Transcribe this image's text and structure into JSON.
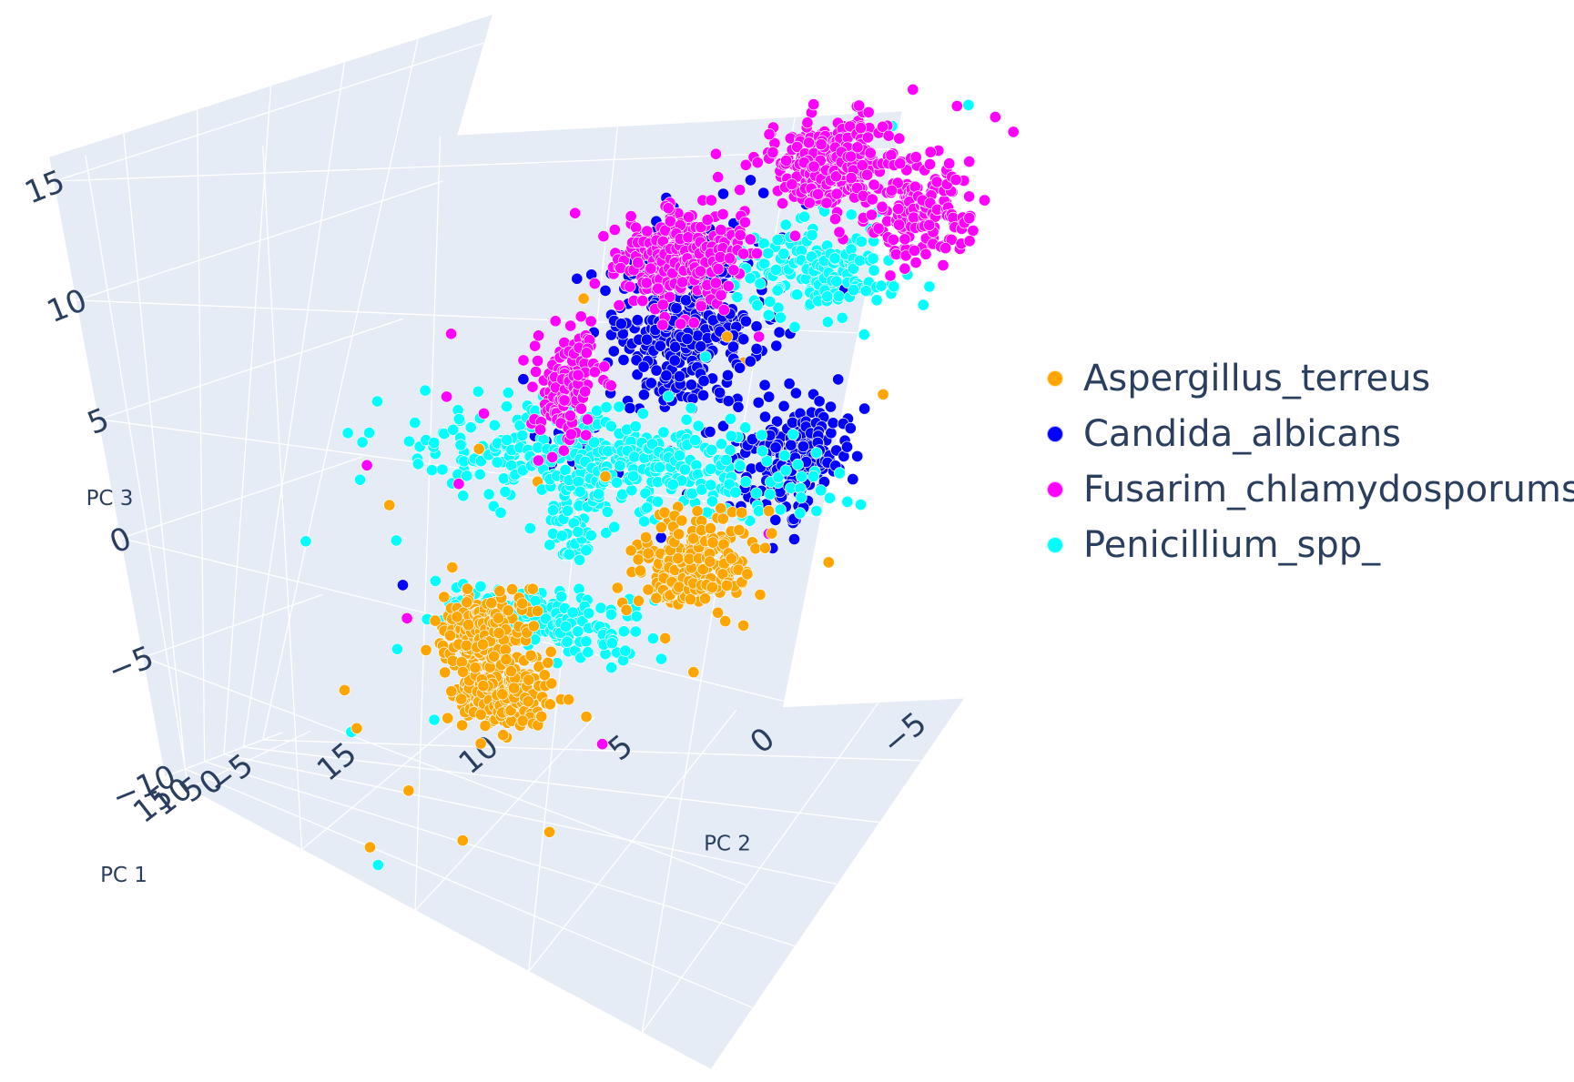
{
  "chart_data": {
    "type": "scatter3d",
    "axes": {
      "x": {
        "label": "PC 1",
        "range": [
          -10,
          20
        ],
        "ticks": [
          "-5",
          "0",
          "5",
          "10",
          "15"
        ]
      },
      "y": {
        "label": "PC 2",
        "range": [
          -8,
          16
        ],
        "ticks": [
          "-5",
          "0",
          "5",
          "10",
          "15"
        ]
      },
      "z": {
        "label": "PC 3",
        "range": [
          -10,
          16
        ],
        "ticks": [
          "-10",
          "-5",
          "0",
          "5",
          "10",
          "15"
        ]
      }
    },
    "grid": true,
    "legend_position": "right",
    "series": [
      {
        "name": "Aspergillus_terreus",
        "color": "#FFA500",
        "clusters": [
          {
            "center": [
              -2,
              1,
              -2
            ],
            "spread": [
              1.2,
              1.0,
              0.8
            ],
            "n": 260
          },
          {
            "center": [
              4,
              6,
              -6
            ],
            "spread": [
              1.2,
              0.8,
              0.6
            ],
            "n": 240
          },
          {
            "center": [
              -1,
              8,
              -5
            ],
            "spread": [
              1.0,
              0.8,
              0.7
            ],
            "n": 200
          }
        ],
        "points": [
          [
            -5,
            2,
            6
          ],
          [
            12,
            -3,
            8
          ],
          [
            2,
            7,
            -12
          ],
          [
            6,
            3,
            -10
          ],
          [
            -6,
            -4,
            4
          ],
          [
            9,
            8,
            -9
          ],
          [
            14,
            2,
            10
          ],
          [
            -3,
            10,
            -3
          ],
          [
            1,
            -5,
            13
          ],
          [
            5,
            11,
            -8
          ],
          [
            8,
            -2,
            -3
          ],
          [
            -7,
            6,
            0
          ],
          [
            3,
            12,
            -7
          ],
          [
            10,
            4,
            3
          ],
          [
            0,
            9,
            2
          ],
          [
            7,
            -6,
            1
          ],
          [
            -4,
            13,
            -1
          ],
          [
            11,
            9,
            -11
          ]
        ]
      },
      {
        "name": "Candida_albicans",
        "color": "#0000FF",
        "clusters": [
          {
            "center": [
              12,
              -1,
              9
            ],
            "spread": [
              1.4,
              1.2,
              1.6
            ],
            "n": 380
          },
          {
            "center": [
              16,
              -6,
              6
            ],
            "spread": [
              0.8,
              0.9,
              0.8
            ],
            "n": 200
          },
          {
            "center": [
              14,
              2,
              5
            ],
            "spread": [
              0.6,
              0.6,
              0.5
            ],
            "n": 40
          }
        ],
        "points": [
          [
            18,
            -7,
            11
          ],
          [
            17,
            -6,
            12
          ],
          [
            11,
            -4,
            13
          ],
          [
            14,
            0,
            12
          ],
          [
            13,
            4,
            7
          ],
          [
            16,
            -2,
            3
          ],
          [
            9,
            6,
            -3
          ],
          [
            12,
            8,
            -1
          ],
          [
            15,
            -3,
            14
          ],
          [
            10,
            2,
            11
          ]
        ]
      },
      {
        "name": "Fusarim_chlamydosporums",
        "color": "#FF00FF",
        "clusters": [
          {
            "center": [
              1,
              -6,
              12
            ],
            "spread": [
              0.6,
              0.8,
              1.0
            ],
            "n": 160
          },
          {
            "center": [
              -4,
              -1,
              13
            ],
            "spread": [
              1.1,
              1.2,
              0.9
            ],
            "n": 300
          },
          {
            "center": [
              -4,
              4,
              9
            ],
            "spread": [
              1.2,
              1.0,
              0.9
            ],
            "n": 300
          },
          {
            "center": [
              -3,
              7,
              4
            ],
            "spread": [
              0.6,
              0.6,
              1.1
            ],
            "n": 140
          }
        ],
        "points": [
          [
            -2,
            -8,
            15
          ],
          [
            -6,
            -3,
            16
          ],
          [
            5,
            2,
            10
          ],
          [
            -7,
            6,
            8
          ],
          [
            -8,
            10,
            5
          ],
          [
            10,
            5,
            -2
          ],
          [
            -5,
            12,
            3
          ],
          [
            2,
            9,
            1
          ],
          [
            6,
            -2,
            8
          ],
          [
            -1,
            11,
            6
          ],
          [
            8,
            1,
            -6
          ],
          [
            13,
            -5,
            3
          ],
          [
            3,
            10,
            -4
          ],
          [
            -6,
            9,
            10
          ],
          [
            0,
            13,
            1
          ],
          [
            4,
            -7,
            16
          ]
        ]
      },
      {
        "name": "Penicillium_spp_",
        "color": "#00FFFF",
        "clusters": [
          {
            "center": [
              3,
              -3,
              10
            ],
            "spread": [
              0.6,
              1.4,
              0.8
            ],
            "n": 180
          },
          {
            "center": [
              5,
              3,
              3
            ],
            "spread": [
              0.8,
              3.4,
              0.9
            ],
            "n": 420
          },
          {
            "center": [
              5,
              5,
              -3
            ],
            "spread": [
              0.7,
              2.0,
              0.5
            ],
            "n": 220
          },
          {
            "center": [
              12,
              2,
              2
            ],
            "spread": [
              0.5,
              0.5,
              0.7
            ],
            "n": 50
          }
        ],
        "points": [
          [
            2,
            -7,
            16
          ],
          [
            0,
            -4,
            15
          ],
          [
            8,
            -2,
            11
          ],
          [
            5,
            0,
            7
          ],
          [
            -2,
            12,
            -2
          ],
          [
            4,
            10,
            -5
          ],
          [
            9,
            9,
            -12
          ],
          [
            6,
            11,
            -8
          ],
          [
            -1,
            6,
            4
          ],
          [
            13,
            4,
            -3
          ],
          [
            7,
            13,
            -1
          ],
          [
            1,
            13,
            2
          ],
          [
            10,
            7,
            -6
          ],
          [
            -3,
            14,
            0
          ]
        ]
      }
    ]
  }
}
